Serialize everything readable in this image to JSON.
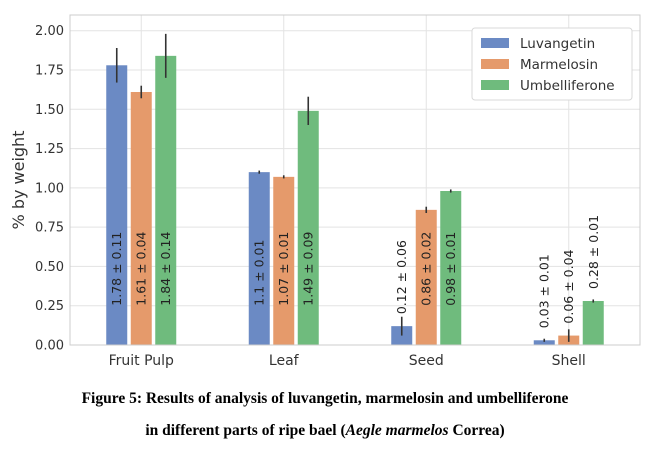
{
  "chart_data": {
    "type": "bar",
    "title": "",
    "xlabel": "",
    "ylabel": "% by weight",
    "ylim": [
      0,
      2.1
    ],
    "yticks": [
      "0.00",
      "0.25",
      "0.50",
      "0.75",
      "1.00",
      "1.25",
      "1.50",
      "1.75",
      "2.00"
    ],
    "categories": [
      "Fruit Pulp",
      "Leaf",
      "Seed",
      "Shell"
    ],
    "grid": true,
    "legend_position": "top-right",
    "series": [
      {
        "name": "Luvangetin",
        "color": "#6b8ac4",
        "values": [
          1.78,
          1.1,
          0.12,
          0.03
        ],
        "errors": [
          0.11,
          0.01,
          0.06,
          0.01
        ],
        "labels": [
          "1.78 ± 0.11",
          "1.1 ± 0.01",
          "0.12 ± 0.06",
          "0.03 ± 0.01"
        ]
      },
      {
        "name": "Marmelosin",
        "color": "#e59a6b",
        "values": [
          1.61,
          1.07,
          0.86,
          0.06
        ],
        "errors": [
          0.04,
          0.01,
          0.02,
          0.04
        ],
        "labels": [
          "1.61 ± 0.04",
          "1.07 ± 0.01",
          "0.86 ± 0.02",
          "0.06 ± 0.04"
        ]
      },
      {
        "name": "Umbelliferone",
        "color": "#6fbb7d",
        "values": [
          1.84,
          1.49,
          0.98,
          0.28
        ],
        "errors": [
          0.14,
          0.09,
          0.01,
          0.01
        ],
        "labels": [
          "1.84 ± 0.14",
          "1.49 ± 0.09",
          "0.98 ± 0.01",
          "0.28 ± 0.01"
        ]
      }
    ]
  },
  "caption": {
    "line1": "Figure 5: Results of analysis of luvangetin, marmelosin and umbelliferone",
    "line2_prefix": "in different parts of ripe bael (",
    "line2_italic": "Aegle marmelos",
    "line2_suffix": " Correa)"
  }
}
